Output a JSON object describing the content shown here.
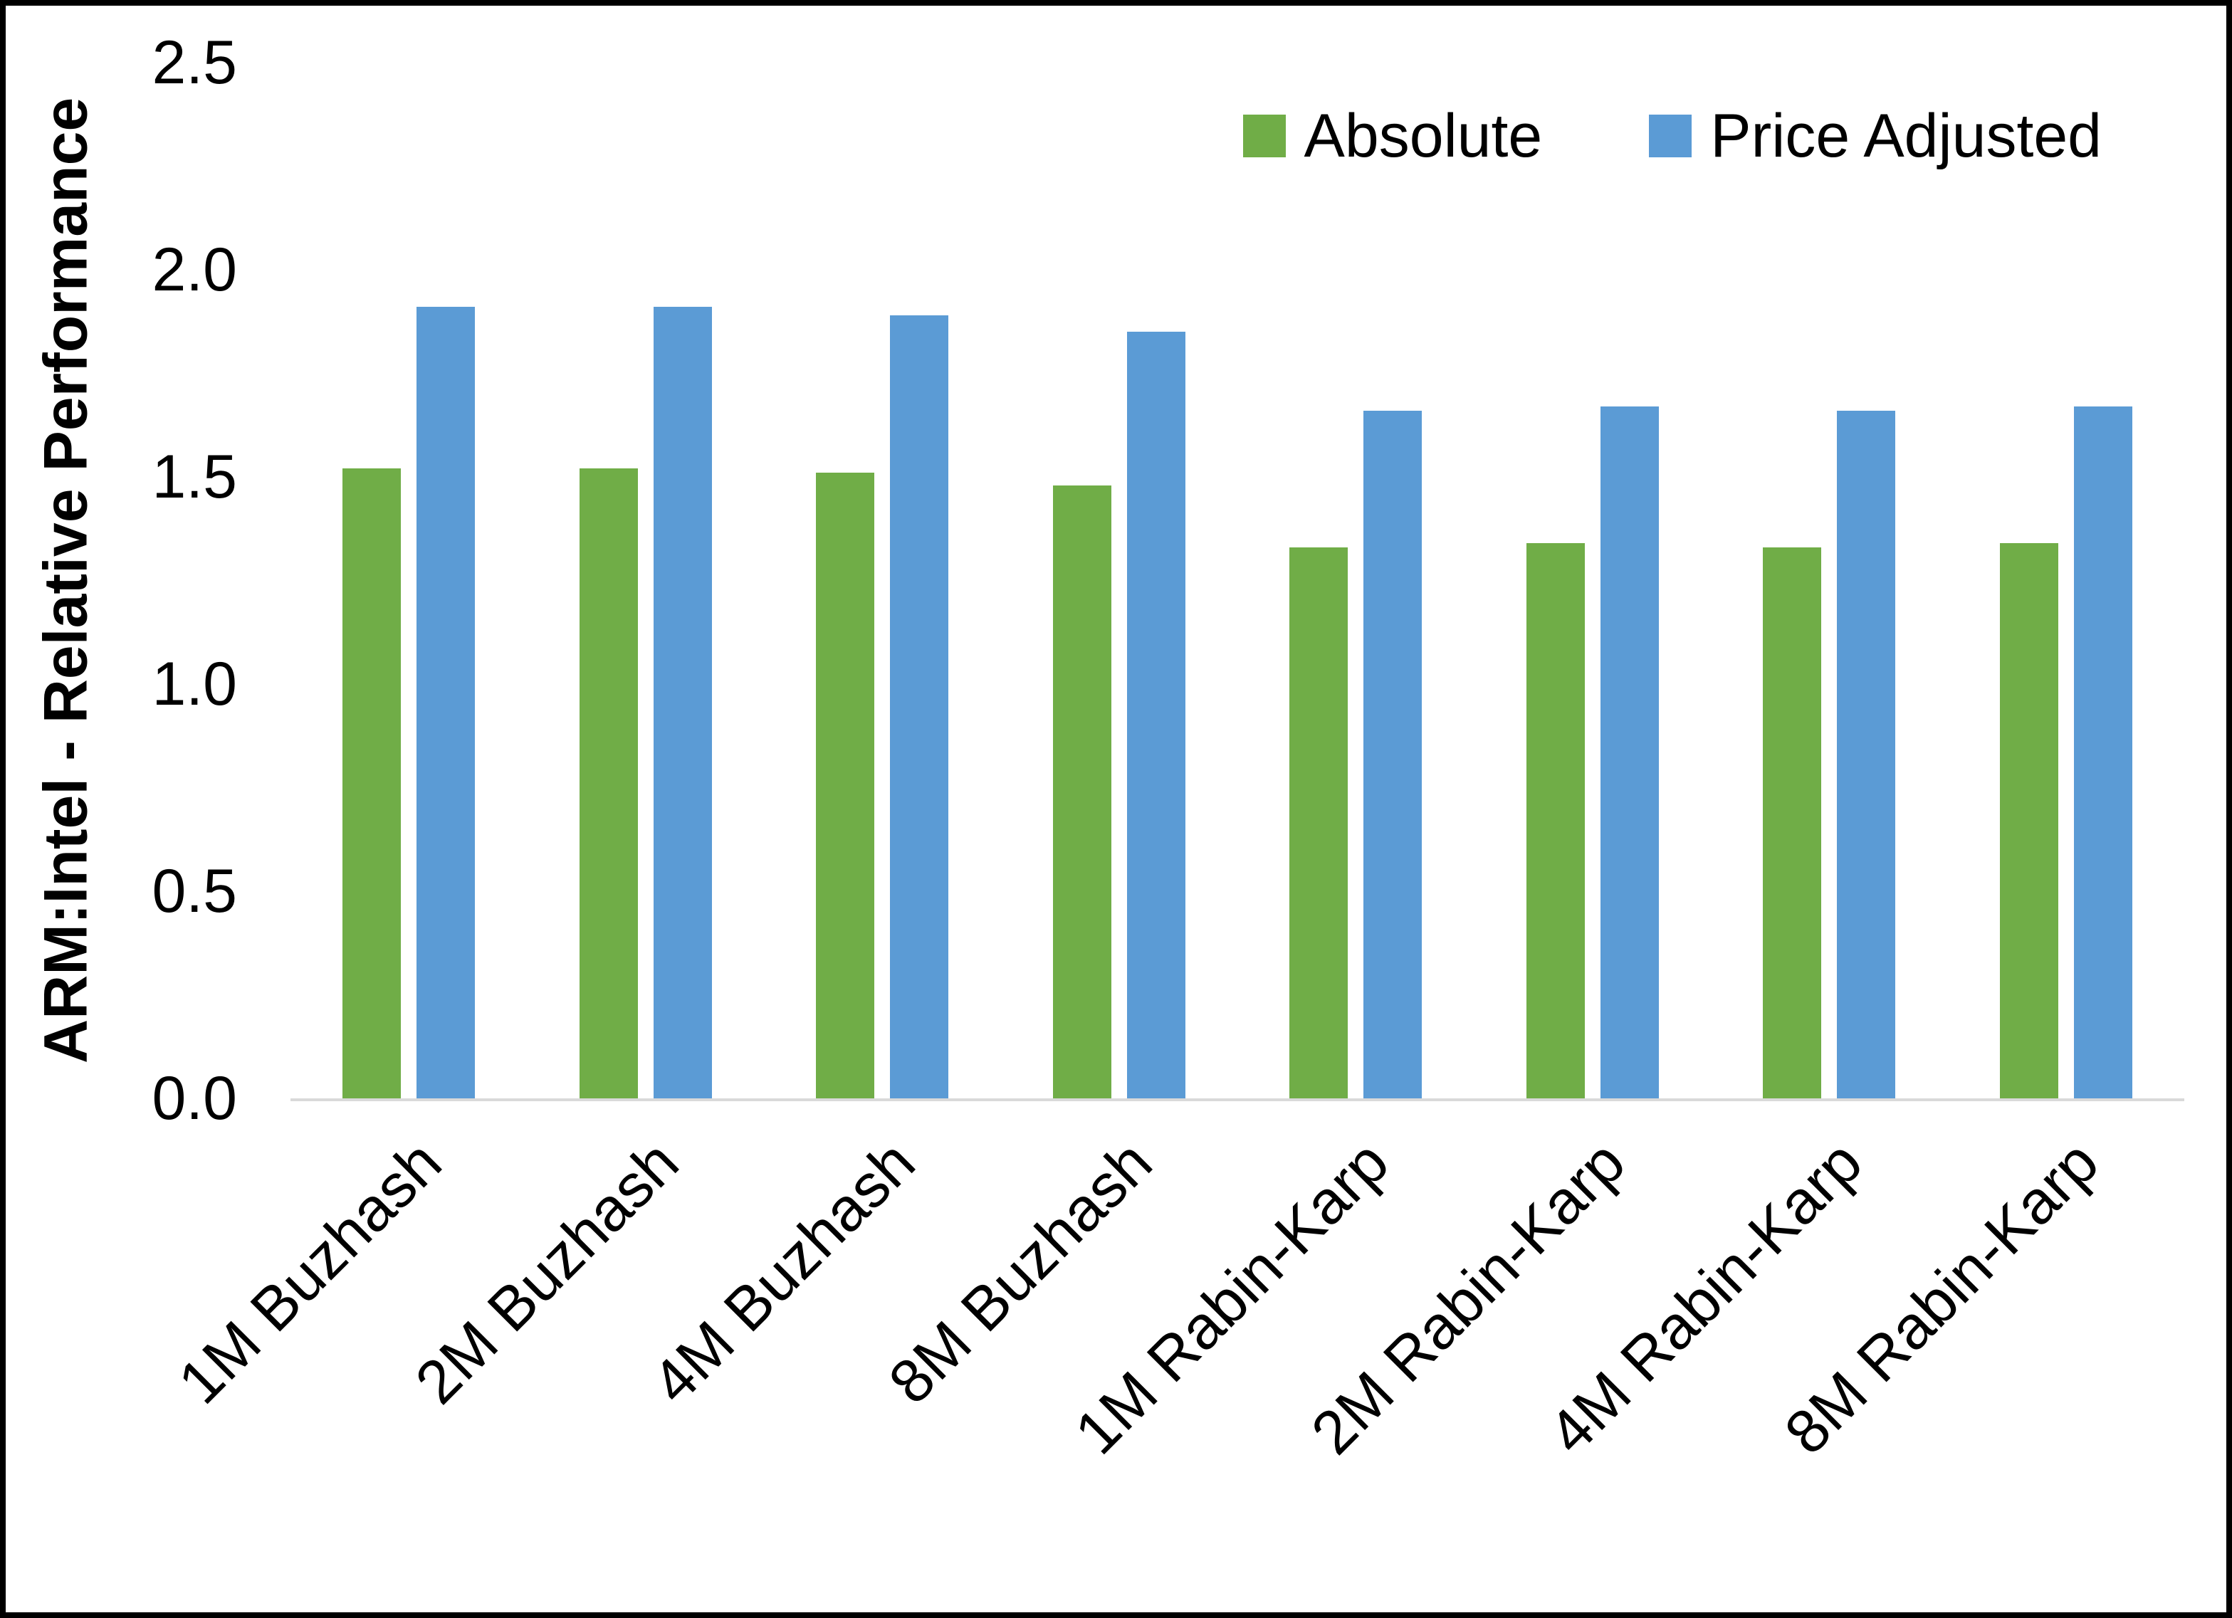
{
  "chart": {
    "background_color": "#ffffff",
    "frame_color": "#000000",
    "baseline_color": "#d9d9d9"
  },
  "chart_data": {
    "type": "bar",
    "title": "",
    "xlabel": "",
    "ylabel": "ARM:Intel - Relative Performance",
    "ylim": [
      0,
      2.5
    ],
    "yticks": [
      0,
      0.5,
      1,
      1.5,
      2,
      2.5
    ],
    "ytick_labels": [
      "0.0",
      "0.5",
      "1.0",
      "1.5",
      "2.0",
      "2.5"
    ],
    "grid": false,
    "legend_position": "top-right",
    "categories": [
      "1M Buzhash",
      "2M Buzhash",
      "4M Buzhash",
      "8M Buzhash",
      "1M Rabin-Karp",
      "2M Rabin-Karp",
      "4M Rabin-Karp",
      "8M Rabin-Karp"
    ],
    "series": [
      {
        "name": "Absolute",
        "color": "#70AD47",
        "values": [
          1.52,
          1.52,
          1.51,
          1.48,
          1.33,
          1.34,
          1.33,
          1.34
        ]
      },
      {
        "name": "Price Adjusted",
        "color": "#5B9BD5",
        "values": [
          1.91,
          1.91,
          1.89,
          1.85,
          1.66,
          1.67,
          1.66,
          1.67
        ]
      }
    ]
  }
}
